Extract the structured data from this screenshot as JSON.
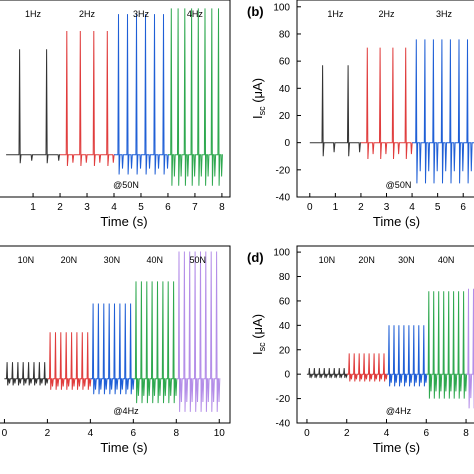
{
  "chart_data": [
    {
      "type": "line",
      "panel_label": "",
      "xlabel": "Time (s)",
      "ylabel": "",
      "xlim": [
        -0.3,
        8.3
      ],
      "ylim": [
        -30,
        110
      ],
      "x_ticks": [
        1,
        2,
        3,
        4,
        5,
        6,
        7,
        8
      ],
      "y_ticks": [],
      "annotation": "@50N",
      "groups": [
        {
          "name": "1Hz",
          "color": "#333333",
          "start": 0,
          "end": 2,
          "freq": 1,
          "pos": 75,
          "neg": -6
        },
        {
          "name": "2Hz",
          "color": "#e03c3c",
          "start": 2,
          "end": 4,
          "freq": 2,
          "pos": 88,
          "neg": -8
        },
        {
          "name": "3Hz",
          "color": "#1f5fd6",
          "start": 4,
          "end": 6,
          "freq": 3,
          "pos": 100,
          "neg": -14
        },
        {
          "name": "4Hz",
          "color": "#2ea84f",
          "start": 6,
          "end": 8,
          "freq": 4,
          "pos": 104,
          "neg": -22
        }
      ]
    },
    {
      "type": "line",
      "panel_label": "(b)",
      "xlabel": "Time (s)",
      "ylabel": "I",
      "ylabel_sub": "sc",
      "ylabel_unit": " (μA)",
      "xlim": [
        -0.5,
        6.5
      ],
      "ylim": [
        -40,
        105
      ],
      "x_ticks": [
        0,
        1,
        2,
        3,
        4,
        5,
        6
      ],
      "y_ticks": [
        -40,
        -20,
        0,
        20,
        40,
        60,
        80,
        100
      ],
      "annotation": "@50N",
      "groups": [
        {
          "name": "1Hz",
          "color": "#333333",
          "start": 0,
          "end": 2,
          "freq": 1,
          "pos": 57,
          "neg": -10
        },
        {
          "name": "2Hz",
          "color": "#e03c3c",
          "start": 2,
          "end": 4,
          "freq": 2,
          "pos": 70,
          "neg": -12
        },
        {
          "name": "3Hz",
          "color": "#1f5fd6",
          "start": 4,
          "end": 6.5,
          "freq": 3,
          "pos": 76,
          "neg": -30
        }
      ]
    },
    {
      "type": "line",
      "panel_label": "",
      "xlabel": "Time (s)",
      "ylabel": "",
      "xlim": [
        -0.3,
        10.5
      ],
      "ylim": [
        -40,
        120
      ],
      "x_ticks": [
        0,
        2,
        4,
        6,
        8,
        10
      ],
      "y_ticks": [],
      "annotation": "@4Hz",
      "groups": [
        {
          "name": "10N",
          "color": "#333333",
          "start": 0,
          "end": 2,
          "freq": 4,
          "pos": 15,
          "neg": -6
        },
        {
          "name": "20N",
          "color": "#e03c3c",
          "start": 2,
          "end": 4,
          "freq": 4,
          "pos": 42,
          "neg": -10
        },
        {
          "name": "30N",
          "color": "#1f5fd6",
          "start": 4,
          "end": 6,
          "freq": 4,
          "pos": 68,
          "neg": -14
        },
        {
          "name": "40N",
          "color": "#2ea84f",
          "start": 6,
          "end": 8,
          "freq": 4,
          "pos": 88,
          "neg": -22
        },
        {
          "name": "50N",
          "color": "#b48ee8",
          "start": 8,
          "end": 10,
          "freq": 4,
          "pos": 115,
          "neg": -30
        }
      ]
    },
    {
      "type": "line",
      "panel_label": "(d)",
      "xlabel": "Time (s)",
      "ylabel": "I",
      "ylabel_sub": "sc",
      "ylabel_unit": " (μA)",
      "xlim": [
        -0.5,
        8.5
      ],
      "ylim": [
        -40,
        105
      ],
      "x_ticks": [
        0,
        2,
        4,
        6,
        8
      ],
      "y_ticks": [
        -40,
        -20,
        0,
        20,
        40,
        60,
        80,
        100
      ],
      "annotation": "@4Hz",
      "groups": [
        {
          "name": "10N",
          "color": "#333333",
          "start": 0,
          "end": 2,
          "freq": 4,
          "pos": 5,
          "neg": -3
        },
        {
          "name": "20N",
          "color": "#e03c3c",
          "start": 2,
          "end": 4,
          "freq": 4,
          "pos": 17,
          "neg": -6
        },
        {
          "name": "30N",
          "color": "#1f5fd6",
          "start": 4,
          "end": 6,
          "freq": 4,
          "pos": 40,
          "neg": -10
        },
        {
          "name": "40N",
          "color": "#2ea84f",
          "start": 6,
          "end": 8,
          "freq": 4,
          "pos": 68,
          "neg": -20
        },
        {
          "name": "",
          "color": "#b48ee8",
          "start": 8,
          "end": 8.5,
          "freq": 4,
          "pos": 70,
          "neg": -28
        }
      ]
    }
  ]
}
